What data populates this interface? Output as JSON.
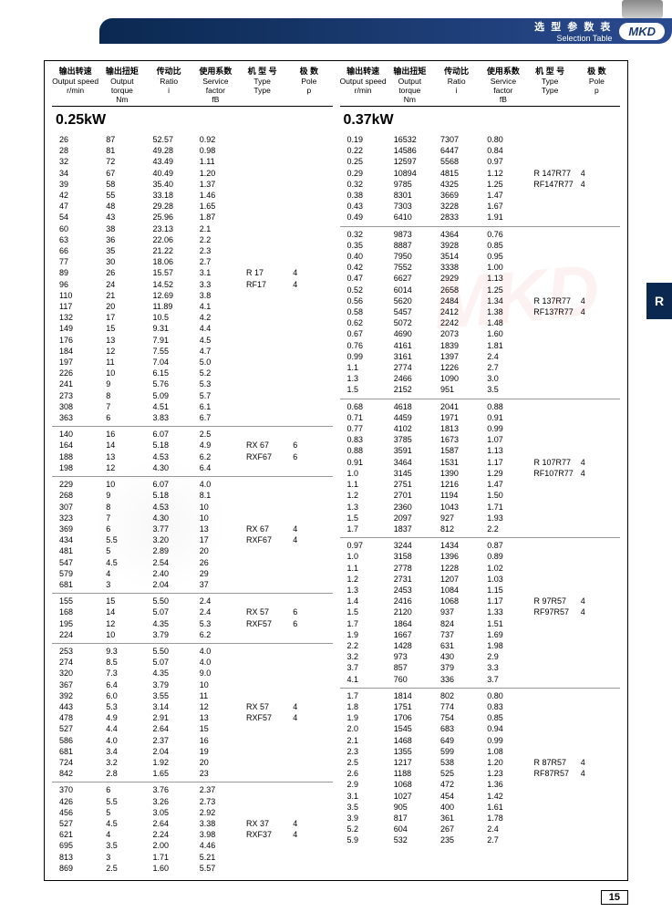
{
  "header": {
    "cn": "选 型 参 数 表",
    "en": "Selection Table",
    "badge": "MKD"
  },
  "sideTab": "R",
  "pageNum": "15",
  "columns": [
    {
      "cn": "输出转速",
      "en": "Output speed",
      "unit": "r/min"
    },
    {
      "cn": "输出扭矩",
      "en": "Output torque",
      "unit": "Nm"
    },
    {
      "cn": "传动比",
      "en": "Ratio",
      "unit": "i"
    },
    {
      "cn": "使用系数",
      "en": "Service factor",
      "unit": "fB"
    },
    {
      "cn": "机 型 号",
      "en": "Type",
      "unit": "Type"
    },
    {
      "cn": "极 数",
      "en": "Pole",
      "unit": "p"
    }
  ],
  "left": {
    "power": "0.25kW",
    "groups": [
      {
        "type1": "R  17",
        "type2": "RF17",
        "pole": "4",
        "rows": [
          [
            "26",
            "87",
            "52.57",
            "0.92"
          ],
          [
            "28",
            "81",
            "49.28",
            "0.98"
          ],
          [
            "32",
            "72",
            "43.49",
            "1.11"
          ],
          [
            "34",
            "67",
            "40.49",
            "1.20"
          ],
          [
            "39",
            "58",
            "35.40",
            "1.37"
          ],
          [
            "42",
            "55",
            "33.18",
            "1.46"
          ],
          [
            "47",
            "48",
            "29.28",
            "1.65"
          ],
          [
            "54",
            "43",
            "25.96",
            "1.87"
          ],
          [
            "60",
            "38",
            "23.13",
            "2.1"
          ],
          [
            "63",
            "36",
            "22.06",
            "2.2"
          ],
          [
            "66",
            "35",
            "21.22",
            "2.3"
          ],
          [
            "77",
            "30",
            "18.06",
            "2.7"
          ],
          [
            "89",
            "26",
            "15.57",
            "3.1"
          ],
          [
            "96",
            "24",
            "14.52",
            "3.3"
          ],
          [
            "110",
            "21",
            "12.69",
            "3.8"
          ],
          [
            "117",
            "20",
            "11.89",
            "4.1"
          ],
          [
            "132",
            "17",
            "10.5",
            "4.2"
          ],
          [
            "149",
            "15",
            "9.31",
            "4.4"
          ],
          [
            "176",
            "13",
            "7.91",
            "4.5"
          ],
          [
            "184",
            "12",
            "7.55",
            "4.7"
          ],
          [
            "197",
            "11",
            "7.04",
            "5.0"
          ],
          [
            "226",
            "10",
            "6.15",
            "5.2"
          ],
          [
            "241",
            "9",
            "5.76",
            "5.3"
          ],
          [
            "273",
            "8",
            "5.09",
            "5.7"
          ],
          [
            "308",
            "7",
            "4.51",
            "6.1"
          ],
          [
            "363",
            "6",
            "3.83",
            "6.7"
          ]
        ]
      },
      {
        "type1": "RX  67",
        "type2": "RXF67",
        "pole": "6",
        "rows": [
          [
            "140",
            "16",
            "6.07",
            "2.5"
          ],
          [
            "164",
            "14",
            "5.18",
            "4.9"
          ],
          [
            "188",
            "13",
            "4.53",
            "6.2"
          ],
          [
            "198",
            "12",
            "4.30",
            "6.4"
          ]
        ]
      },
      {
        "type1": "RX  67",
        "type2": "RXF67",
        "pole": "4",
        "rows": [
          [
            "229",
            "10",
            "6.07",
            "4.0"
          ],
          [
            "268",
            "9",
            "5.18",
            "8.1"
          ],
          [
            "307",
            "8",
            "4.53",
            "10"
          ],
          [
            "323",
            "7",
            "4.30",
            "10"
          ],
          [
            "369",
            "6",
            "3.77",
            "13"
          ],
          [
            "434",
            "5.5",
            "3.20",
            "17"
          ],
          [
            "481",
            "5",
            "2.89",
            "20"
          ],
          [
            "547",
            "4.5",
            "2.54",
            "26"
          ],
          [
            "579",
            "4",
            "2.40",
            "29"
          ],
          [
            "681",
            "3",
            "2.04",
            "37"
          ]
        ]
      },
      {
        "type1": "RX  57",
        "type2": "RXF57",
        "pole": "6",
        "rows": [
          [
            "155",
            "15",
            "5.50",
            "2.4"
          ],
          [
            "168",
            "14",
            "5.07",
            "2.4"
          ],
          [
            "195",
            "12",
            "4.35",
            "5.3"
          ],
          [
            "224",
            "10",
            "3.79",
            "6.2"
          ]
        ]
      },
      {
        "type1": "RX  57",
        "type2": "RXF57",
        "pole": "4",
        "rows": [
          [
            "253",
            "9.3",
            "5.50",
            "4.0"
          ],
          [
            "274",
            "8.5",
            "5.07",
            "4.0"
          ],
          [
            "320",
            "7.3",
            "4.35",
            "9.0"
          ],
          [
            "367",
            "6.4",
            "3.79",
            "10"
          ],
          [
            "392",
            "6.0",
            "3.55",
            "11"
          ],
          [
            "443",
            "5.3",
            "3.14",
            "12"
          ],
          [
            "478",
            "4.9",
            "2.91",
            "13"
          ],
          [
            "527",
            "4.4",
            "2.64",
            "15"
          ],
          [
            "586",
            "4.0",
            "2.37",
            "16"
          ],
          [
            "681",
            "3.4",
            "2.04",
            "19"
          ],
          [
            "724",
            "3.2",
            "1.92",
            "20"
          ],
          [
            "842",
            "2.8",
            "1.65",
            "23"
          ]
        ]
      },
      {
        "type1": "RX  37",
        "type2": "RXF37",
        "pole": "4",
        "rows": [
          [
            "370",
            "6",
            "3.76",
            "2.37"
          ],
          [
            "426",
            "5.5",
            "3.26",
            "2.73"
          ],
          [
            "456",
            "5",
            "3.05",
            "2.92"
          ],
          [
            "527",
            "4.5",
            "2.64",
            "3.38"
          ],
          [
            "621",
            "4",
            "2.24",
            "3.98"
          ],
          [
            "695",
            "3.5",
            "2.00",
            "4.46"
          ],
          [
            "813",
            "3",
            "1.71",
            "5.21"
          ],
          [
            "869",
            "2.5",
            "1.60",
            "5.57"
          ]
        ]
      }
    ]
  },
  "right": {
    "power": "0.37kW",
    "groups": [
      {
        "type1": "R  147R77",
        "type2": "RF147R77",
        "pole": "4",
        "rows": [
          [
            "0.19",
            "16532",
            "7307",
            "0.80"
          ],
          [
            "0.22",
            "14586",
            "6447",
            "0.84"
          ],
          [
            "0.25",
            "12597",
            "5568",
            "0.97"
          ],
          [
            "0.29",
            "10894",
            "4815",
            "1.12"
          ],
          [
            "0.32",
            "9785",
            "4325",
            "1.25"
          ],
          [
            "0.38",
            "8301",
            "3669",
            "1.47"
          ],
          [
            "0.43",
            "7303",
            "3228",
            "1.67"
          ],
          [
            "0.49",
            "6410",
            "2833",
            "1.91"
          ]
        ]
      },
      {
        "type1": "R  137R77",
        "type2": "RF137R77",
        "pole": "4",
        "rows": [
          [
            "0.32",
            "9873",
            "4364",
            "0.76"
          ],
          [
            "0.35",
            "8887",
            "3928",
            "0.85"
          ],
          [
            "0.40",
            "7950",
            "3514",
            "0.95"
          ],
          [
            "0.42",
            "7552",
            "3338",
            "1.00"
          ],
          [
            "0.47",
            "6627",
            "2929",
            "1.13"
          ],
          [
            "0.52",
            "6014",
            "2658",
            "1.25"
          ],
          [
            "0.56",
            "5620",
            "2484",
            "1.34"
          ],
          [
            "0.58",
            "5457",
            "2412",
            "1.38"
          ],
          [
            "0.62",
            "5072",
            "2242",
            "1.48"
          ],
          [
            "0.67",
            "4690",
            "2073",
            "1.60"
          ],
          [
            "0.76",
            "4161",
            "1839",
            "1.81"
          ],
          [
            "0.99",
            "3161",
            "1397",
            "2.4"
          ],
          [
            "1.1",
            "2774",
            "1226",
            "2.7"
          ],
          [
            "1.3",
            "2466",
            "1090",
            "3.0"
          ],
          [
            "1.5",
            "2152",
            "951",
            "3.5"
          ]
        ]
      },
      {
        "type1": "R  107R77",
        "type2": "RF107R77",
        "pole": "4",
        "rows": [
          [
            "0.68",
            "4618",
            "2041",
            "0.88"
          ],
          [
            "0.71",
            "4459",
            "1971",
            "0.91"
          ],
          [
            "0.77",
            "4102",
            "1813",
            "0.99"
          ],
          [
            "0.83",
            "3785",
            "1673",
            "1.07"
          ],
          [
            "0.88",
            "3591",
            "1587",
            "1.13"
          ],
          [
            "0.91",
            "3464",
            "1531",
            "1.17"
          ],
          [
            "1.0",
            "3145",
            "1390",
            "1.29"
          ],
          [
            "1.1",
            "2751",
            "1216",
            "1.47"
          ],
          [
            "1.2",
            "2701",
            "1194",
            "1.50"
          ],
          [
            "1.3",
            "2360",
            "1043",
            "1.71"
          ],
          [
            "1.5",
            "2097",
            "927",
            "1.93"
          ],
          [
            "1.7",
            "1837",
            "812",
            "2.2"
          ]
        ]
      },
      {
        "type1": "R  97R57",
        "type2": "RF97R57",
        "pole": "4",
        "rows": [
          [
            "0.97",
            "3244",
            "1434",
            "0.87"
          ],
          [
            "1.0",
            "3158",
            "1396",
            "0.89"
          ],
          [
            "1.1",
            "2778",
            "1228",
            "1.02"
          ],
          [
            "1.2",
            "2731",
            "1207",
            "1.03"
          ],
          [
            "1.3",
            "2453",
            "1084",
            "1.15"
          ],
          [
            "1.4",
            "2416",
            "1068",
            "1.17"
          ],
          [
            "1.5",
            "2120",
            "937",
            "1.33"
          ],
          [
            "1.7",
            "1864",
            "824",
            "1.51"
          ],
          [
            "1.9",
            "1667",
            "737",
            "1.69"
          ],
          [
            "2.2",
            "1428",
            "631",
            "1.98"
          ],
          [
            "3.2",
            "973",
            "430",
            "2.9"
          ],
          [
            "3.7",
            "857",
            "379",
            "3.3"
          ],
          [
            "4.1",
            "760",
            "336",
            "3.7"
          ]
        ]
      },
      {
        "type1": "R  87R57",
        "type2": "RF87R57",
        "pole": "4",
        "rows": [
          [
            "1.7",
            "1814",
            "802",
            "0.80"
          ],
          [
            "1.8",
            "1751",
            "774",
            "0.83"
          ],
          [
            "1.9",
            "1706",
            "754",
            "0.85"
          ],
          [
            "2.0",
            "1545",
            "683",
            "0.94"
          ],
          [
            "2.1",
            "1468",
            "649",
            "0.99"
          ],
          [
            "2.3",
            "1355",
            "599",
            "1.08"
          ],
          [
            "2.5",
            "1217",
            "538",
            "1.20"
          ],
          [
            "2.6",
            "1188",
            "525",
            "1.23"
          ],
          [
            "2.9",
            "1068",
            "472",
            "1.36"
          ],
          [
            "3.1",
            "1027",
            "454",
            "1.42"
          ],
          [
            "3.5",
            "905",
            "400",
            "1.61"
          ],
          [
            "3.9",
            "817",
            "361",
            "1.78"
          ],
          [
            "5.2",
            "604",
            "267",
            "2.4"
          ],
          [
            "5.9",
            "532",
            "235",
            "2.7"
          ]
        ]
      }
    ]
  }
}
